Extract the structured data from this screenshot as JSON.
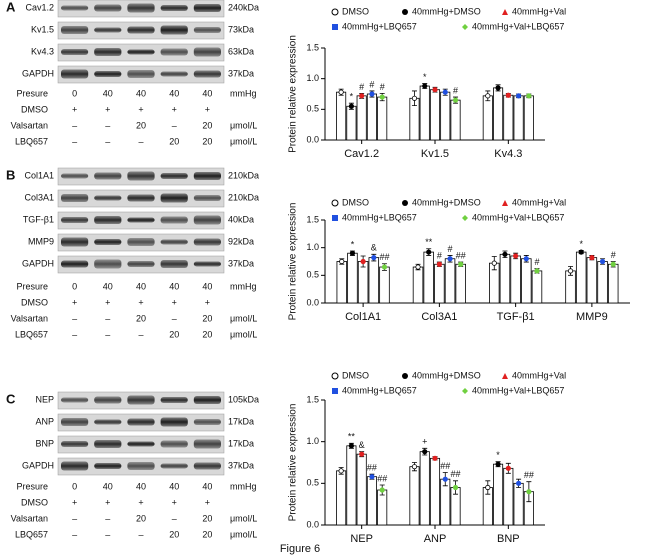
{
  "panels": [
    {
      "letter": "A",
      "bands": [
        {
          "name": "Cav1.2",
          "size": "240kDa"
        },
        {
          "name": "Kv1.5",
          "size": "73kDa"
        },
        {
          "name": "Kv4.3",
          "size": "63kDa"
        },
        {
          "name": "GAPDH",
          "size": "37kDa"
        }
      ],
      "conditions": [
        {
          "label": "Presure",
          "values": [
            "0",
            "40",
            "40",
            "40",
            "40"
          ],
          "unit": "mmHg"
        },
        {
          "label": "DMSO",
          "values": [
            "+",
            "+",
            "+",
            "+",
            "+"
          ]
        },
        {
          "label": "Valsartan",
          "values": [
            "–",
            "–",
            "20",
            "–",
            "20"
          ],
          "unit": "μmol/L"
        },
        {
          "label": "LBQ657",
          "values": [
            "–",
            "–",
            "–",
            "20",
            "20"
          ],
          "unit": "μmol/L"
        }
      ]
    },
    {
      "letter": "B",
      "bands": [
        {
          "name": "Col1A1",
          "size": "210kDa"
        },
        {
          "name": "Col3A1",
          "size": "210kDa"
        },
        {
          "name": "TGF-β1",
          "size": "40kDa"
        },
        {
          "name": "MMP9",
          "size": "92kDa"
        },
        {
          "name": "GAPDH",
          "size": "37kDa"
        }
      ],
      "conditions": [
        {
          "label": "Presure",
          "values": [
            "0",
            "40",
            "40",
            "40",
            "40"
          ],
          "unit": "mmHg"
        },
        {
          "label": "DMSO",
          "values": [
            "+",
            "+",
            "+",
            "+",
            "+"
          ]
        },
        {
          "label": "Valsartan",
          "values": [
            "–",
            "–",
            "20",
            "–",
            "20"
          ],
          "unit": "μmol/L"
        },
        {
          "label": "LBQ657",
          "values": [
            "–",
            "–",
            "–",
            "20",
            "20"
          ],
          "unit": "μmol/L"
        }
      ]
    },
    {
      "letter": "C",
      "bands": [
        {
          "name": "NEP",
          "size": "105kDa"
        },
        {
          "name": "ANP",
          "size": "17kDa"
        },
        {
          "name": "BNP",
          "size": "17kDa"
        },
        {
          "name": "GAPDH",
          "size": "37kDa"
        }
      ],
      "conditions": [
        {
          "label": "Presure",
          "values": [
            "0",
            "40",
            "40",
            "40",
            "40"
          ],
          "unit": "mmHg"
        },
        {
          "label": "DMSO",
          "values": [
            "+",
            "+",
            "+",
            "+",
            "+"
          ]
        },
        {
          "label": "Valsartan",
          "values": [
            "–",
            "–",
            "20",
            "–",
            "20"
          ],
          "unit": "μmol/L"
        },
        {
          "label": "LBQ657",
          "values": [
            "–",
            "–",
            "–",
            "20",
            "20"
          ],
          "unit": "μmol/L"
        }
      ]
    }
  ],
  "chart_data": [
    {
      "type": "bar",
      "ylabel": "Protein relative expression",
      "categories": [
        "Cav1.2",
        "Kv1.5",
        "Kv4.3"
      ],
      "ylim": [
        0,
        1.5
      ],
      "yticks": [
        {
          "value": 0,
          "label": "0.0"
        },
        {
          "value": 0.5,
          "label": "0.5"
        },
        {
          "value": 1,
          "label": "1.0"
        },
        {
          "value": 1.5,
          "label": "1.5"
        }
      ],
      "series": [
        {
          "name": "DMSO",
          "color": "#000000",
          "marker": "circle-open",
          "values": [
            0.78,
            0.68,
            0.72
          ],
          "errors": [
            0.05,
            0.12,
            0.08
          ],
          "annotations": [
            null,
            null,
            null
          ]
        },
        {
          "name": "40mmHg+DMSO",
          "color": "#000000",
          "marker": "circle",
          "values": [
            0.55,
            0.88,
            0.85
          ],
          "errors": [
            0.05,
            0.04,
            0.05
          ],
          "annotations": [
            "*",
            "*",
            null
          ]
        },
        {
          "name": "40mmHg+Val",
          "color": "#e02020",
          "marker": "triangle",
          "values": [
            0.72,
            0.82,
            0.73
          ],
          "errors": [
            0.04,
            0.04,
            0.03
          ],
          "annotations": [
            "#",
            null,
            null
          ]
        },
        {
          "name": "40mmHg+LBQ657",
          "color": "#2050e0",
          "marker": "square",
          "values": [
            0.75,
            0.78,
            0.72
          ],
          "errors": [
            0.05,
            0.05,
            0.03
          ],
          "annotations": [
            "#",
            null,
            null
          ]
        },
        {
          "name": "40mmHg+Val+LBQ657",
          "color": "#70d040",
          "marker": "diamond",
          "values": [
            0.7,
            0.65,
            0.72
          ],
          "errors": [
            0.06,
            0.05,
            0.03
          ],
          "annotations": [
            "#",
            "#",
            null
          ]
        }
      ]
    },
    {
      "type": "bar",
      "ylabel": "Protein relative expression",
      "categories": [
        "Col1A1",
        "Col3A1",
        "TGF-β1",
        "MMP9"
      ],
      "ylim": [
        0,
        1.5
      ],
      "yticks": [
        {
          "value": 0,
          "label": "0.0"
        },
        {
          "value": 0.5,
          "label": "0.5"
        },
        {
          "value": 1,
          "label": "1.0"
        },
        {
          "value": 1.5,
          "label": "1.5"
        }
      ],
      "series": [
        {
          "name": "DMSO",
          "color": "#000000",
          "marker": "circle-open",
          "values": [
            0.75,
            0.65,
            0.72,
            0.58
          ],
          "errors": [
            0.05,
            0.05,
            0.12,
            0.08
          ],
          "annotations": [
            null,
            null,
            null,
            null
          ]
        },
        {
          "name": "40mmHg+DMSO",
          "color": "#000000",
          "marker": "circle",
          "values": [
            0.9,
            0.92,
            0.88,
            0.92
          ],
          "errors": [
            0.04,
            0.06,
            0.06,
            0.03
          ],
          "annotations": [
            "*",
            "**",
            null,
            "*"
          ]
        },
        {
          "name": "40mmHg+Val",
          "color": "#e02020",
          "marker": "triangle",
          "values": [
            0.75,
            0.7,
            0.85,
            0.82
          ],
          "errors": [
            0.1,
            0.04,
            0.05,
            0.04
          ],
          "annotations": [
            null,
            "#",
            null,
            null
          ]
        },
        {
          "name": "40mmHg+LBQ657",
          "color": "#2050e0",
          "marker": "square",
          "values": [
            0.82,
            0.8,
            0.8,
            0.75
          ],
          "errors": [
            0.06,
            0.06,
            0.06,
            0.05
          ],
          "annotations": [
            "&",
            "#",
            null,
            null
          ]
        },
        {
          "name": "40mmHg+Val+LBQ657",
          "color": "#70d040",
          "marker": "diamond",
          "values": [
            0.65,
            0.7,
            0.58,
            0.7
          ],
          "errors": [
            0.06,
            0.04,
            0.04,
            0.05
          ],
          "annotations": [
            "##",
            "##",
            "#",
            "#"
          ]
        }
      ]
    },
    {
      "type": "bar",
      "ylabel": "Protein relative expression",
      "categories": [
        "NEP",
        "ANP",
        "BNP"
      ],
      "ylim": [
        0,
        1.5
      ],
      "yticks": [
        {
          "value": 0,
          "label": "0.0"
        },
        {
          "value": 0.5,
          "label": "0.5"
        },
        {
          "value": 1,
          "label": "1.0"
        },
        {
          "value": 1.5,
          "label": "1.5"
        }
      ],
      "series": [
        {
          "name": "DMSO",
          "color": "#000000",
          "marker": "circle-open",
          "values": [
            0.65,
            0.7,
            0.45
          ],
          "errors": [
            0.04,
            0.05,
            0.08
          ],
          "annotations": [
            null,
            null,
            null
          ]
        },
        {
          "name": "40mmHg+DMSO",
          "color": "#000000",
          "marker": "circle",
          "values": [
            0.95,
            0.88,
            0.73
          ],
          "errors": [
            0.03,
            0.04,
            0.03
          ],
          "annotations": [
            "**",
            "+",
            "*"
          ]
        },
        {
          "name": "40mmHg+Val",
          "color": "#e02020",
          "marker": "triangle",
          "values": [
            0.85,
            0.8,
            0.68
          ],
          "errors": [
            0.03,
            0.02,
            0.06
          ],
          "annotations": [
            "&",
            null,
            null
          ]
        },
        {
          "name": "40mmHg+LBQ657",
          "color": "#2050e0",
          "marker": "square",
          "values": [
            0.58,
            0.55,
            0.5
          ],
          "errors": [
            0.03,
            0.08,
            0.05
          ],
          "annotations": [
            "##",
            "##",
            null
          ]
        },
        {
          "name": "40mmHg+Val+LBQ657",
          "color": "#70d040",
          "marker": "diamond",
          "values": [
            0.42,
            0.45,
            0.4
          ],
          "errors": [
            0.06,
            0.08,
            0.12
          ],
          "annotations": [
            "##",
            "##",
            "##"
          ]
        }
      ]
    }
  ],
  "caption": "Figure 6"
}
